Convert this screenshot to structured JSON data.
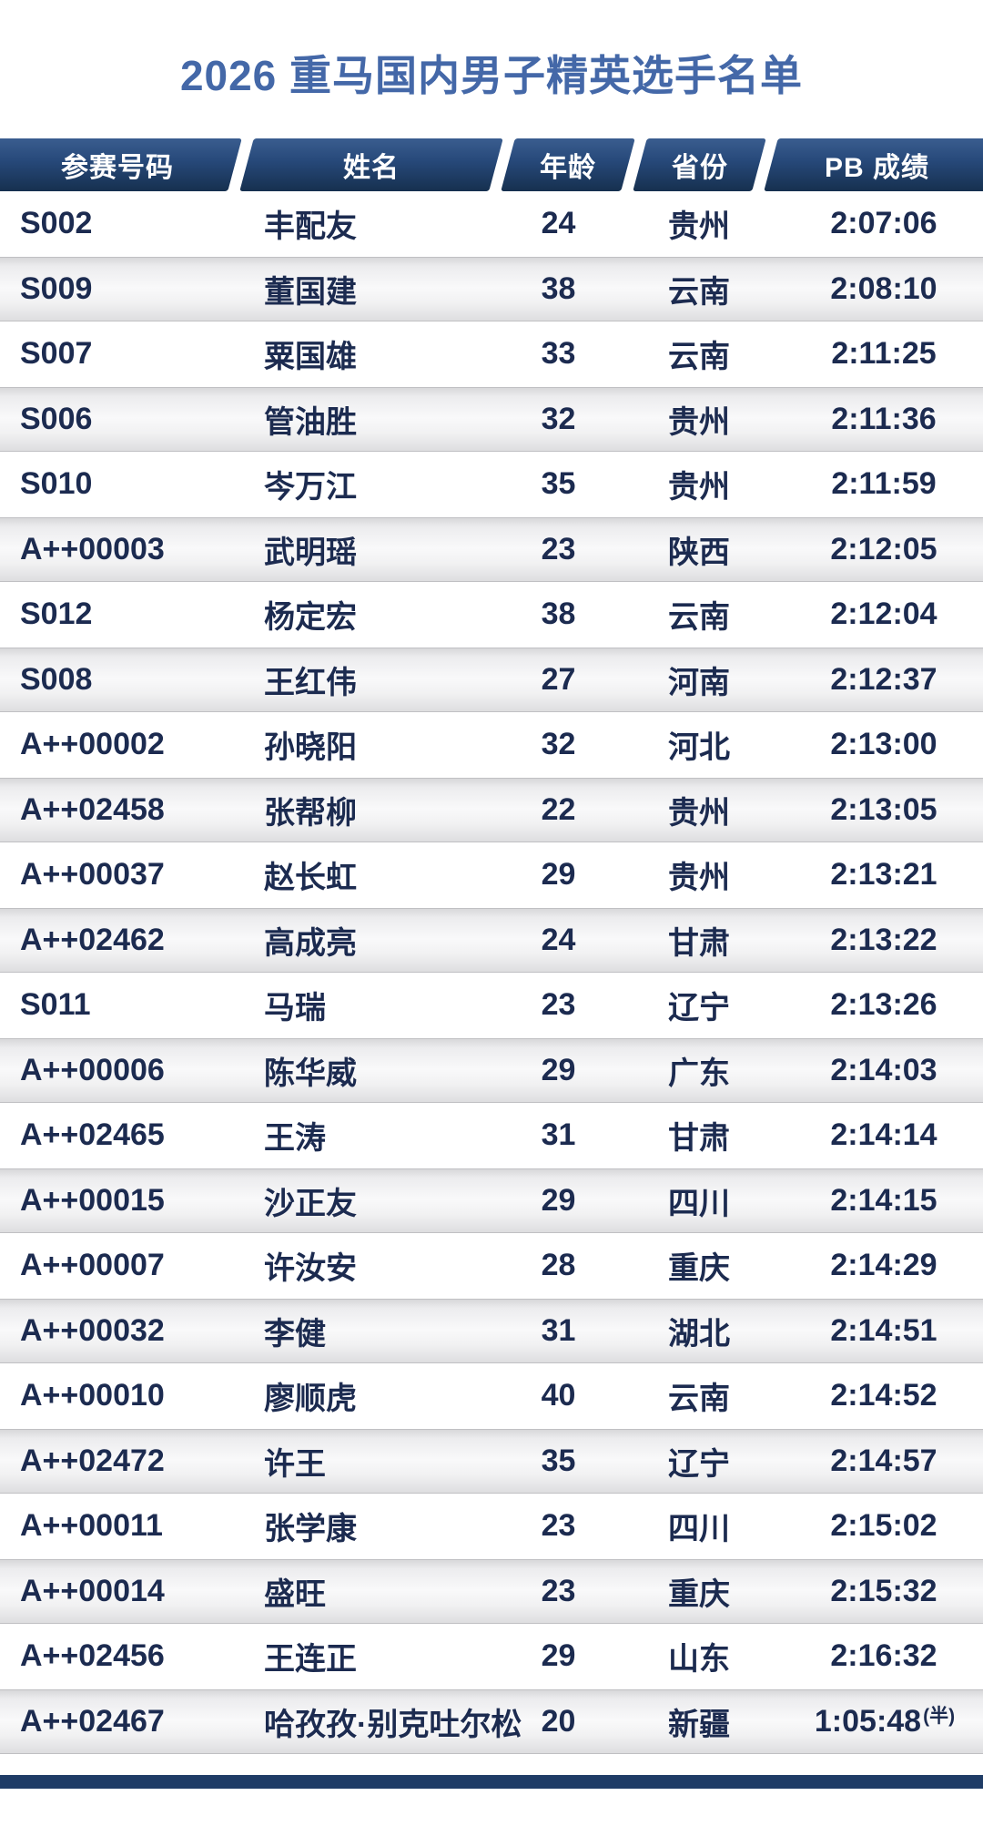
{
  "title": "2026 重马国内男子精英选手名单",
  "colors": {
    "title_text": "#4468A8",
    "header_bg_top": "#3A5D8F",
    "header_bg_bottom": "#16304F",
    "header_text": "#FFFFFF",
    "cell_text": "#1C2B50",
    "stripe_gray": "#E6E6E8",
    "footer_bar": "#1F3C66"
  },
  "table": {
    "columns": [
      {
        "key": "bib",
        "label": "参赛号码"
      },
      {
        "key": "name",
        "label": "姓名"
      },
      {
        "key": "age",
        "label": "年龄"
      },
      {
        "key": "province",
        "label": "省份"
      },
      {
        "key": "pb",
        "label": "PB 成绩"
      }
    ],
    "rows": [
      {
        "bib": "S002",
        "name": "丰配友",
        "age": "24",
        "province": "贵州",
        "pb": "2:07:06"
      },
      {
        "bib": "S009",
        "name": "董国建",
        "age": "38",
        "province": "云南",
        "pb": "2:08:10"
      },
      {
        "bib": "S007",
        "name": "粟国雄",
        "age": "33",
        "province": "云南",
        "pb": "2:11:25"
      },
      {
        "bib": "S006",
        "name": "管油胜",
        "age": "32",
        "province": "贵州",
        "pb": "2:11:36"
      },
      {
        "bib": "S010",
        "name": "岑万江",
        "age": "35",
        "province": "贵州",
        "pb": "2:11:59"
      },
      {
        "bib": "A++00003",
        "name": "武明瑶",
        "age": "23",
        "province": "陕西",
        "pb": "2:12:05"
      },
      {
        "bib": "S012",
        "name": "杨定宏",
        "age": "38",
        "province": "云南",
        "pb": "2:12:04"
      },
      {
        "bib": "S008",
        "name": "王红伟",
        "age": "27",
        "province": "河南",
        "pb": "2:12:37"
      },
      {
        "bib": "A++00002",
        "name": "孙晓阳",
        "age": "32",
        "province": "河北",
        "pb": "2:13:00"
      },
      {
        "bib": "A++02458",
        "name": "张帮柳",
        "age": "22",
        "province": "贵州",
        "pb": "2:13:05"
      },
      {
        "bib": "A++00037",
        "name": "赵长虹",
        "age": "29",
        "province": "贵州",
        "pb": "2:13:21"
      },
      {
        "bib": "A++02462",
        "name": "高成亮",
        "age": "24",
        "province": "甘肃",
        "pb": "2:13:22"
      },
      {
        "bib": "S011",
        "name": "马瑞",
        "age": "23",
        "province": "辽宁",
        "pb": "2:13:26"
      },
      {
        "bib": "A++00006",
        "name": "陈华威",
        "age": "29",
        "province": "广东",
        "pb": "2:14:03"
      },
      {
        "bib": "A++02465",
        "name": "王涛",
        "age": "31",
        "province": "甘肃",
        "pb": "2:14:14"
      },
      {
        "bib": "A++00015",
        "name": "沙正友",
        "age": "29",
        "province": "四川",
        "pb": "2:14:15"
      },
      {
        "bib": "A++00007",
        "name": "许汝安",
        "age": "28",
        "province": "重庆",
        "pb": "2:14:29"
      },
      {
        "bib": "A++00032",
        "name": "李健",
        "age": "31",
        "province": "湖北",
        "pb": "2:14:51"
      },
      {
        "bib": "A++00010",
        "name": "廖顺虎",
        "age": "40",
        "province": "云南",
        "pb": "2:14:52"
      },
      {
        "bib": "A++02472",
        "name": "许王",
        "age": "35",
        "province": "辽宁",
        "pb": "2:14:57"
      },
      {
        "bib": "A++00011",
        "name": "张学康",
        "age": "23",
        "province": "四川",
        "pb": "2:15:02"
      },
      {
        "bib": "A++00014",
        "name": "盛旺",
        "age": "23",
        "province": "重庆",
        "pb": "2:15:32"
      },
      {
        "bib": "A++02456",
        "name": "王连正",
        "age": "29",
        "province": "山东",
        "pb": "2:16:32"
      },
      {
        "bib": "A++02467",
        "name": "哈孜孜·别克吐尔松",
        "age": "20",
        "province": "新疆",
        "pb": "1:05:48",
        "pb_suffix": "(半)"
      }
    ]
  }
}
